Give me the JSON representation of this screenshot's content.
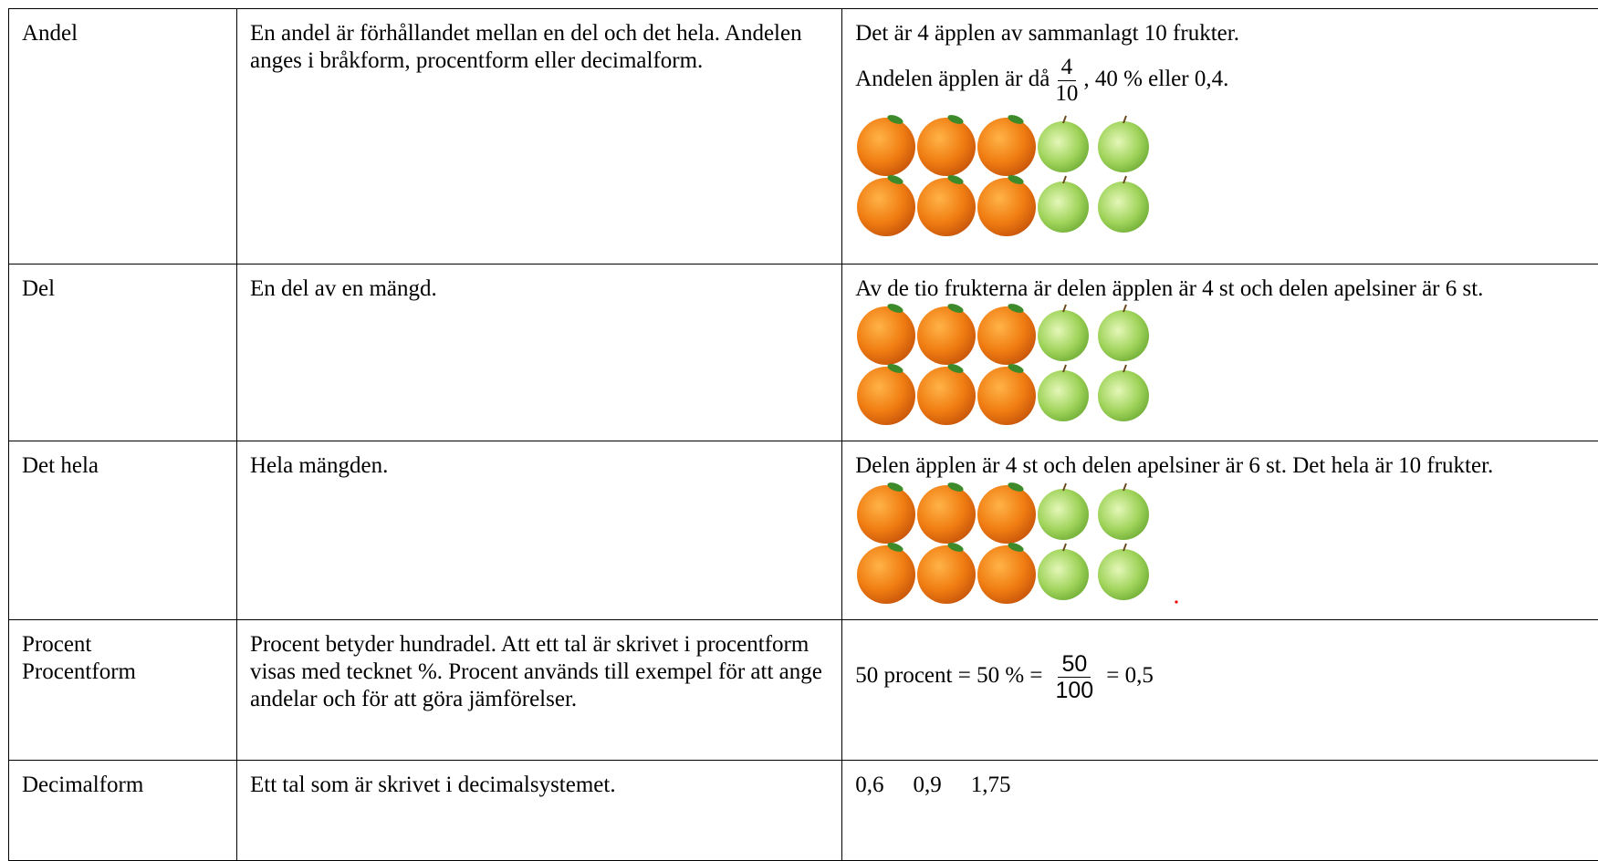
{
  "table": {
    "rows": [
      {
        "term": [
          "Andel"
        ],
        "definition": "En andel är förhållandet mellan en del och det hela. Andelen anges i bråkform, procentform eller decimalform.",
        "example": {
          "line1": "Det är 4 äpplen av sammanlagt 10 frukter.",
          "before": "Andelen äpplen är då",
          "numerator": "4",
          "denominator": "10",
          "after": ", 40 % eller 0,4."
        }
      },
      {
        "term": [
          "Del"
        ],
        "definition": "En del av en mängd.",
        "example": {
          "line1": "Av de tio frukterna är delen äpplen är 4 st och delen apelsiner är 6 st."
        }
      },
      {
        "term": [
          "Det hela"
        ],
        "definition": "Hela mängden.",
        "example": {
          "line1": "Delen äpplen är 4 st och delen apelsiner är 6 st. Det hela är 10 frukter."
        }
      },
      {
        "term": [
          "Procent",
          "Procentform"
        ],
        "definition": "Procent betyder hundradel. Att ett tal är skrivet i procentform visas med tecknet %. Procent används till exempel för att ange andelar och för att göra jämförelser.",
        "example": {
          "before": "50 procent = 50 % =",
          "numerator": "50",
          "denominator": "100",
          "after": "= 0,5"
        }
      },
      {
        "term": [
          "Decimalform"
        ],
        "definition": "Ett tal som är skrivet i decimalsystemet.",
        "example": {
          "items": [
            "0,6",
            "0,9",
            "1,75"
          ]
        }
      }
    ]
  }
}
